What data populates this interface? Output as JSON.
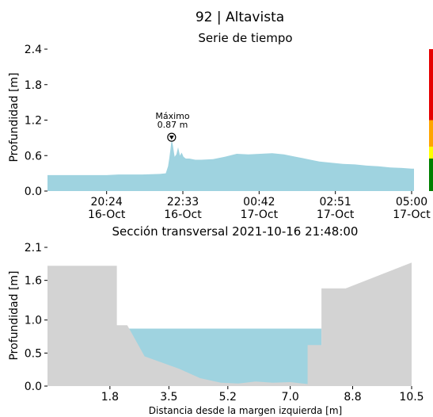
{
  "title": "92 | Altavista",
  "chart_data": [
    {
      "type": "area",
      "title": "Serie de tiempo",
      "ylabel": "Profundidad [m]",
      "ylim": [
        0,
        2.4
      ],
      "yticks": [
        "0.0",
        "0.6",
        "1.2",
        "1.8",
        "2.4"
      ],
      "xticks": [
        {
          "time": "20:24",
          "date": "16-Oct"
        },
        {
          "time": "22:33",
          "date": "16-Oct"
        },
        {
          "time": "00:42",
          "date": "17-Oct"
        },
        {
          "time": "02:51",
          "date": "17-Oct"
        },
        {
          "time": "05:00",
          "date": "17-Oct"
        }
      ],
      "x_minutes_since_first_tick": [
        -100,
        -60,
        -20,
        0,
        20,
        60,
        90,
        100,
        104,
        106,
        108,
        110,
        112,
        115,
        118,
        121,
        124,
        127,
        130,
        134,
        140,
        150,
        160,
        180,
        200,
        220,
        240,
        260,
        280,
        300,
        320,
        340,
        360,
        380,
        400,
        420,
        440,
        460,
        480,
        500,
        516,
        520
      ],
      "values": [
        0.27,
        0.27,
        0.27,
        0.27,
        0.28,
        0.28,
        0.29,
        0.3,
        0.42,
        0.55,
        0.7,
        0.87,
        0.78,
        0.58,
        0.62,
        0.74,
        0.6,
        0.65,
        0.58,
        0.55,
        0.55,
        0.53,
        0.53,
        0.54,
        0.58,
        0.63,
        0.62,
        0.63,
        0.64,
        0.62,
        0.58,
        0.54,
        0.5,
        0.48,
        0.46,
        0.45,
        0.43,
        0.42,
        0.4,
        0.39,
        0.38,
        0.38
      ],
      "fill_color": "#9fd3e0",
      "annotation": {
        "line1": "Máximo",
        "line2": "0.87 m",
        "value": 0.87,
        "x_minutes_since_first_tick": 110
      },
      "alert_bar": [
        {
          "color": "#e60000",
          "from": 1.2,
          "to": 2.4
        },
        {
          "color": "#ffa500",
          "from": 0.75,
          "to": 1.2
        },
        {
          "color": "#ffff00",
          "from": 0.55,
          "to": 0.75
        },
        {
          "color": "#008000",
          "from": 0.0,
          "to": 0.55
        }
      ]
    },
    {
      "type": "area",
      "title": "Sección transversal 2021-10-16 21:48:00",
      "xlabel": "Distancia desde la margen izquierda [m]",
      "ylabel": "Profundidad [m]",
      "xlim": [
        0,
        10.5
      ],
      "ylim": [
        0,
        2.1
      ],
      "xticks": [
        "1.8",
        "3.5",
        "5.2",
        "7.0",
        "8.8",
        "10.5"
      ],
      "xtick_values": [
        1.8,
        3.5,
        5.2,
        7.0,
        8.8,
        10.5
      ],
      "yticks": [
        "0.0",
        "0.5",
        "1.0",
        "1.6",
        "2.1"
      ],
      "ytick_values": [
        0.0,
        0.5,
        1.0,
        1.6,
        2.1
      ],
      "ground_profile": {
        "x": [
          0,
          2.0,
          2.0,
          2.3,
          2.8,
          3.8,
          4.4,
          5.0,
          5.5,
          6.0,
          6.5,
          7.0,
          7.5,
          7.5,
          7.9,
          7.9,
          8.6,
          10.5
        ],
        "y": [
          1.82,
          1.82,
          0.92,
          0.92,
          0.45,
          0.26,
          0.12,
          0.05,
          0.04,
          0.07,
          0.05,
          0.06,
          0.03,
          0.62,
          0.62,
          1.48,
          1.48,
          1.87
        ]
      },
      "water_level": 0.87,
      "water_x_range": [
        2.3,
        7.9
      ],
      "ground_color": "#d3d3d3",
      "water_color": "#9fd3e0"
    }
  ]
}
